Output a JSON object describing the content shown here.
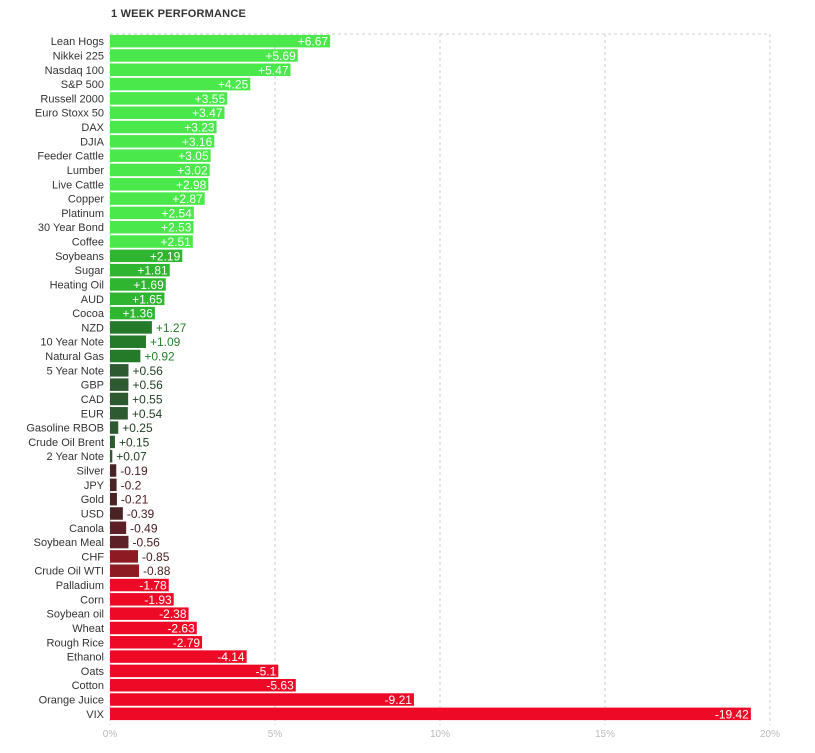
{
  "title": "1 WEEK PERFORMANCE",
  "chart_data": {
    "type": "bar",
    "orientation": "horizontal",
    "title": "1 WEEK PERFORMANCE",
    "xlabel": "",
    "ylabel": "",
    "xlim": [
      0,
      20
    ],
    "grid": true,
    "x_ticks": [
      "0%",
      "5%",
      "10%",
      "15%",
      "20%"
    ],
    "categories": [
      "Lean Hogs",
      "Nikkei 225",
      "Nasdaq 100",
      "S&P 500",
      "Russell 2000",
      "Euro Stoxx 50",
      "DAX",
      "DJIA",
      "Feeder Cattle",
      "Lumber",
      "Live Cattle",
      "Copper",
      "Platinum",
      "30 Year Bond",
      "Coffee",
      "Soybeans",
      "Sugar",
      "Heating Oil",
      "AUD",
      "Cocoa",
      "NZD",
      "10 Year Note",
      "Natural Gas",
      "5 Year Note",
      "GBP",
      "CAD",
      "EUR",
      "Gasoline RBOB",
      "Crude Oil Brent",
      "2 Year Note",
      "Silver",
      "JPY",
      "Gold",
      "USD",
      "Canola",
      "Soybean Meal",
      "CHF",
      "Crude Oil WTI",
      "Palladium",
      "Corn",
      "Soybean oil",
      "Wheat",
      "Rough Rice",
      "Ethanol",
      "Oats",
      "Cotton",
      "Orange Juice",
      "VIX"
    ],
    "values": [
      6.67,
      5.69,
      5.47,
      4.25,
      3.55,
      3.47,
      3.23,
      3.16,
      3.05,
      3.02,
      2.98,
      2.87,
      2.54,
      2.53,
      2.51,
      2.19,
      1.81,
      1.69,
      1.65,
      1.36,
      1.27,
      1.09,
      0.92,
      0.56,
      0.56,
      0.55,
      0.54,
      0.25,
      0.15,
      0.07,
      -0.19,
      -0.2,
      -0.21,
      -0.39,
      -0.49,
      -0.56,
      -0.85,
      -0.88,
      -1.78,
      -1.93,
      -2.38,
      -2.63,
      -2.79,
      -4.14,
      -5.1,
      -5.63,
      -9.21,
      -19.42
    ],
    "value_labels": [
      "+6.67",
      "+5.69",
      "+5.47",
      "+4.25",
      "+3.55",
      "+3.47",
      "+3.23",
      "+3.16",
      "+3.05",
      "+3.02",
      "+2.98",
      "+2.87",
      "+2.54",
      "+2.53",
      "+2.51",
      "+2.19",
      "+1.81",
      "+1.69",
      "+1.65",
      "+1.36",
      "+1.27",
      "+1.09",
      "+0.92",
      "+0.56",
      "+0.56",
      "+0.55",
      "+0.54",
      "+0.25",
      "+0.15",
      "+0.07",
      "-0.19",
      "-0.2",
      "-0.21",
      "-0.39",
      "-0.49",
      "-0.56",
      "-0.85",
      "-0.88",
      "-1.78",
      "-1.93",
      "-2.38",
      "-2.63",
      "-2.79",
      "-4.14",
      "-5.1",
      "-5.63",
      "-9.21",
      "-19.42"
    ],
    "colors": {
      "positive_strong": "#4be84b",
      "positive_mid": "#2fb52f",
      "positive_weak": "#2d5a31",
      "negative_weak": "#4a2424",
      "negative_mid": "#8e1a24",
      "negative_strong": "#ee0a26",
      "grid": "#cccccc",
      "label": "#333333"
    }
  }
}
